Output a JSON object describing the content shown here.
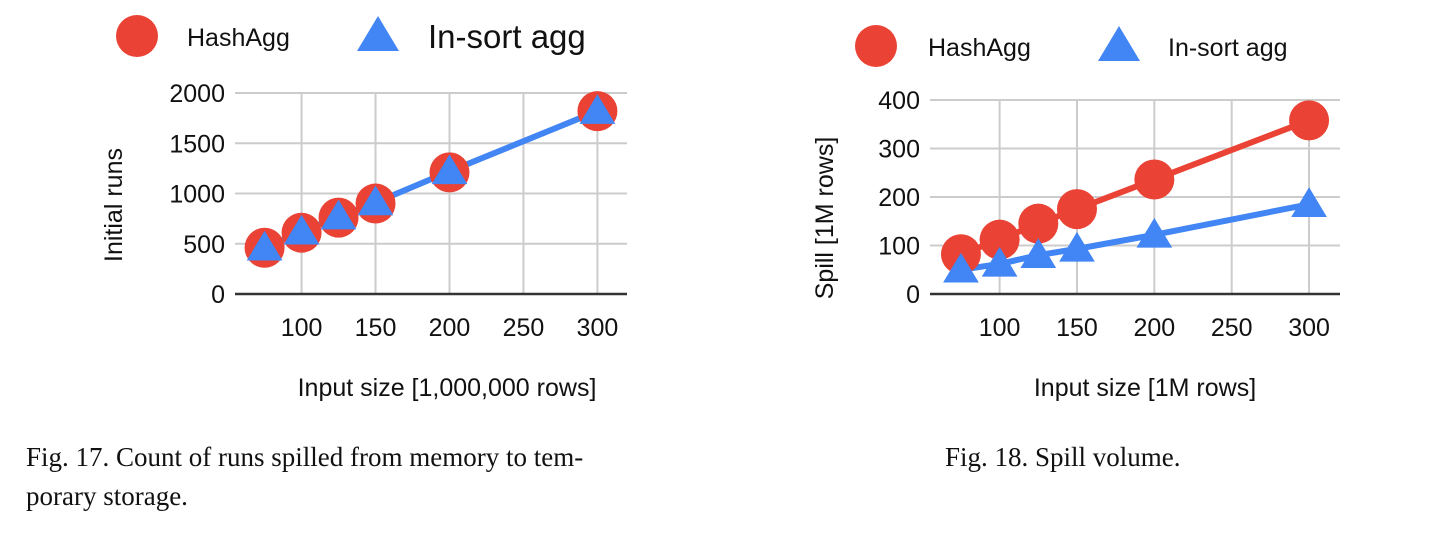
{
  "chart_data": [
    {
      "type": "line",
      "x": [
        75,
        100,
        125,
        150,
        200,
        300
      ],
      "xticks": [
        100,
        150,
        200,
        250,
        300
      ],
      "xlim": [
        55,
        320
      ],
      "yticks": [
        0,
        500,
        1000,
        1500,
        2000
      ],
      "ylim": [
        0,
        2000
      ],
      "xlabel": "Input size [1,000,000 rows]",
      "ylabel": "Initial runs",
      "grid": true,
      "legend_position": "top",
      "series": [
        {
          "name": "HashAgg",
          "marker": "circle",
          "color": "#ea4335",
          "line": false,
          "values": [
            460,
            610,
            760,
            900,
            1210,
            1820
          ]
        },
        {
          "name": "In-sort agg",
          "marker": "triangle",
          "color": "#4285f4",
          "line": true,
          "values": [
            460,
            620,
            770,
            910,
            1220,
            1820
          ]
        }
      ],
      "caption": [
        "Fig. 17.  Count of runs spilled from memory to tem-",
        "porary storage."
      ]
    },
    {
      "type": "line",
      "x": [
        75,
        100,
        125,
        150,
        200,
        300
      ],
      "xticks": [
        100,
        150,
        200,
        250,
        300
      ],
      "xlim": [
        55,
        320
      ],
      "yticks": [
        0,
        100,
        200,
        300,
        400
      ],
      "ylim": [
        0,
        400
      ],
      "xlabel": "Input size [1M rows]",
      "ylabel": "Spill [1M rows]",
      "ylabel_color": "#0000ff",
      "grid": true,
      "legend_position": "top",
      "series": [
        {
          "name": "HashAgg",
          "marker": "circle",
          "color": "#ea4335",
          "line": true,
          "values": [
            82,
            112,
            145,
            175,
            236,
            358
          ]
        },
        {
          "name": "In-sort agg",
          "marker": "triangle",
          "color": "#4285f4",
          "line": true,
          "values": [
            50,
            62,
            80,
            93,
            122,
            185
          ]
        }
      ],
      "caption": [
        "Fig. 18.  Spill volume."
      ]
    }
  ]
}
